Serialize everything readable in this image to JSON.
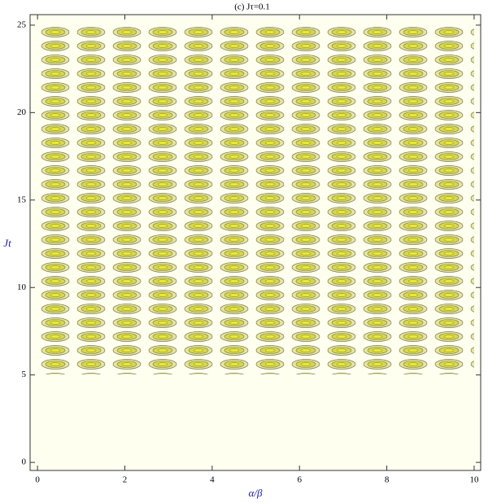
{
  "chart_data": {
    "type": "contour",
    "title": "(c) Jτ=0.1",
    "x_label": "α/β",
    "y_label": "Jt",
    "xlim": [
      -0.17,
      10.15
    ],
    "ylim": [
      -0.46,
      25.6
    ],
    "xticks": [
      0,
      2,
      4,
      6,
      8,
      10
    ],
    "yticks": [
      0,
      5,
      10,
      15,
      20,
      25
    ],
    "background": "#fffff0",
    "color": "#d8d84a"
  }
}
